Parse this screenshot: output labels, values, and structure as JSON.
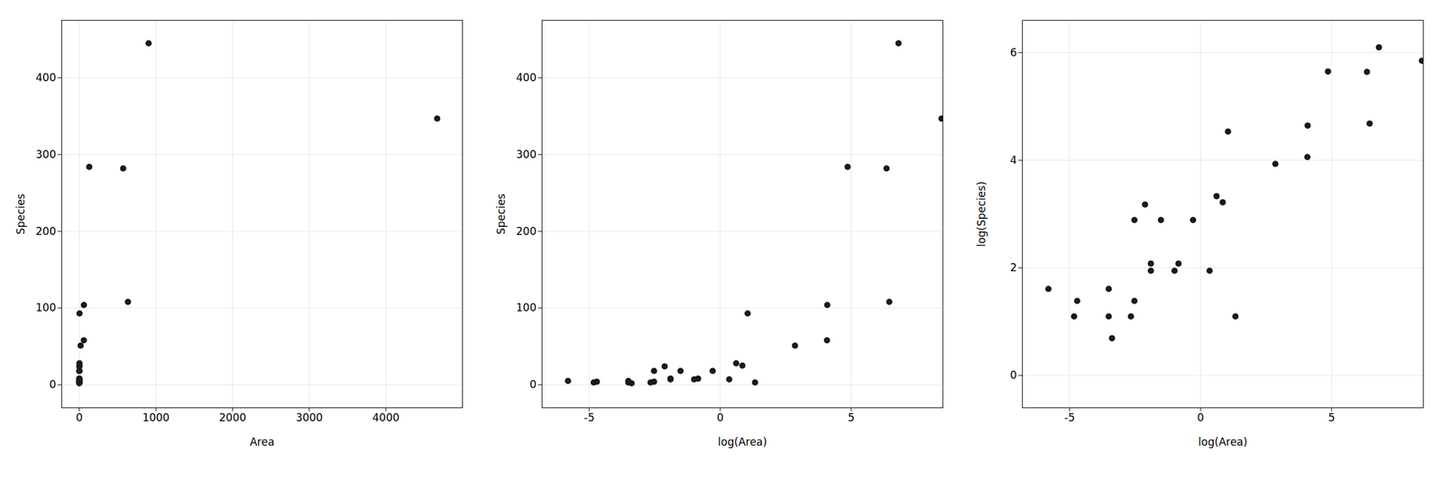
{
  "chart_data": [
    {
      "type": "scatter",
      "x_label": "Area",
      "y_label": "Species",
      "color": "#1a1a1a",
      "grid": true,
      "x": [
        58.93,
        0.003,
        2.33,
        0.034,
        0.08,
        0.12,
        3.78,
        0.15,
        0.75,
        0.009,
        17.35,
        2.85,
        572.33,
        0.15,
        0.03,
        1.84,
        0.08,
        903.82,
        0.07,
        4669.32,
        0.37,
        0.22,
        0.03,
        59.56,
        0.43,
        1.41,
        0.008,
        129.49,
        634.49
      ],
      "values": [
        58,
        5,
        25,
        2,
        18,
        24,
        3,
        7,
        18,
        4,
        51,
        93,
        282,
        8,
        5,
        28,
        4,
        445,
        3,
        347,
        7,
        18,
        3,
        104,
        8,
        7,
        3,
        284,
        108
      ],
      "xlim": [
        -230,
        5000
      ],
      "ylim": [
        -30,
        475
      ],
      "xticks": [
        0,
        1000,
        2000,
        3000,
        4000
      ],
      "yticks": [
        0,
        100,
        200,
        300,
        400
      ]
    },
    {
      "type": "scatter",
      "x_label": "log(Area)",
      "y_label": "Species",
      "color": "#1a1a1a",
      "grid": true,
      "x": [
        4.076351,
        -5.809143,
        0.845868,
        -3.381395,
        -2.525729,
        -2.120264,
        1.329724,
        -1.89712,
        -0.287682,
        -4.710531,
        2.853592,
        1.047319,
        6.349716,
        -1.89712,
        -3.506558,
        0.609766,
        -2.525729,
        6.80663,
        -2.65926,
        8.448769,
        -0.994252,
        -1.514128,
        -3.506558,
        4.086985,
        -0.84397,
        0.34359,
        -4.828314,
        4.863603,
        6.452822
      ],
      "values": [
        58,
        5,
        25,
        2,
        18,
        24,
        3,
        7,
        18,
        4,
        51,
        93,
        282,
        8,
        5,
        28,
        4,
        445,
        3,
        347,
        7,
        18,
        3,
        104,
        8,
        7,
        3,
        284,
        108
      ],
      "xlim": [
        -6.8,
        8.5
      ],
      "ylim": [
        -30,
        475
      ],
      "xticks": [
        -5,
        0,
        5
      ],
      "yticks": [
        0,
        100,
        200,
        300,
        400
      ]
    },
    {
      "type": "scatter",
      "x_label": "log(Area)",
      "y_label": "log(Species)",
      "color": "#1a1a1a",
      "grid": true,
      "x": [
        4.076351,
        -5.809143,
        0.845868,
        -3.381395,
        -2.525729,
        -2.120264,
        1.329724,
        -1.89712,
        -0.287682,
        -4.710531,
        2.853592,
        1.047319,
        6.349716,
        -1.89712,
        -3.506558,
        0.609766,
        -2.525729,
        6.80663,
        -2.65926,
        8.448769,
        -0.994252,
        -1.514128,
        -3.506558,
        4.086985,
        -0.84397,
        0.34359,
        -4.828314,
        4.863603,
        6.452822
      ],
      "values": [
        4.060443,
        1.609438,
        3.218876,
        0.693147,
        2.890372,
        3.178054,
        1.098612,
        1.94591,
        2.890372,
        1.386294,
        3.931826,
        4.532599,
        5.641907,
        2.079442,
        1.609438,
        3.332205,
        1.386294,
        6.098074,
        1.098612,
        5.849325,
        1.94591,
        2.890372,
        1.098612,
        4.644391,
        2.079442,
        1.94591,
        1.098612,
        5.648974,
        4.682131
      ],
      "xlim": [
        -6.8,
        8.5
      ],
      "ylim": [
        -0.6,
        6.6
      ],
      "xticks": [
        -5,
        0,
        5
      ],
      "yticks": [
        0,
        2,
        4,
        6
      ]
    }
  ]
}
